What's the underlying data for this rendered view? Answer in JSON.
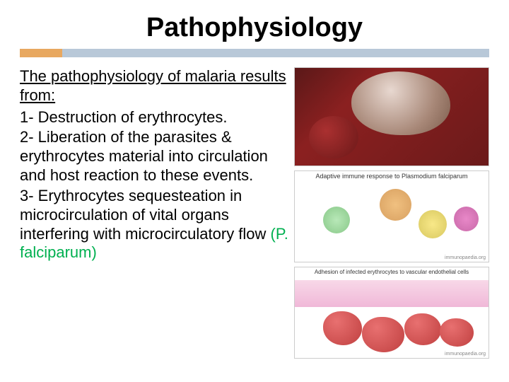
{
  "title": "Pathophysiology",
  "divider": {
    "seg1_color": "#e8a860",
    "seg1_width": 60,
    "seg2_color": "#b8c8d8"
  },
  "heading": "The pathophysiology of malaria results from:",
  "points": {
    "p1": "1- Destruction of erythrocytes.",
    "p2": "2- Liberation of the parasites & erythrocytes material into circulation and host reaction to these events.",
    "p3_a": "3- Erythrocytes sequesteation in microcirculation of vital organs interfering with microcirculatory flow ",
    "p3_b": "(P. falciparum)"
  },
  "accent_color": "#00b050",
  "images": {
    "img2_title": "Adaptive immune response to Plasmodium falciparum",
    "img3_title": "Adhesion of infected erythrocytes to vascular endothelial cells",
    "attribution": "immunopaedia.org"
  }
}
